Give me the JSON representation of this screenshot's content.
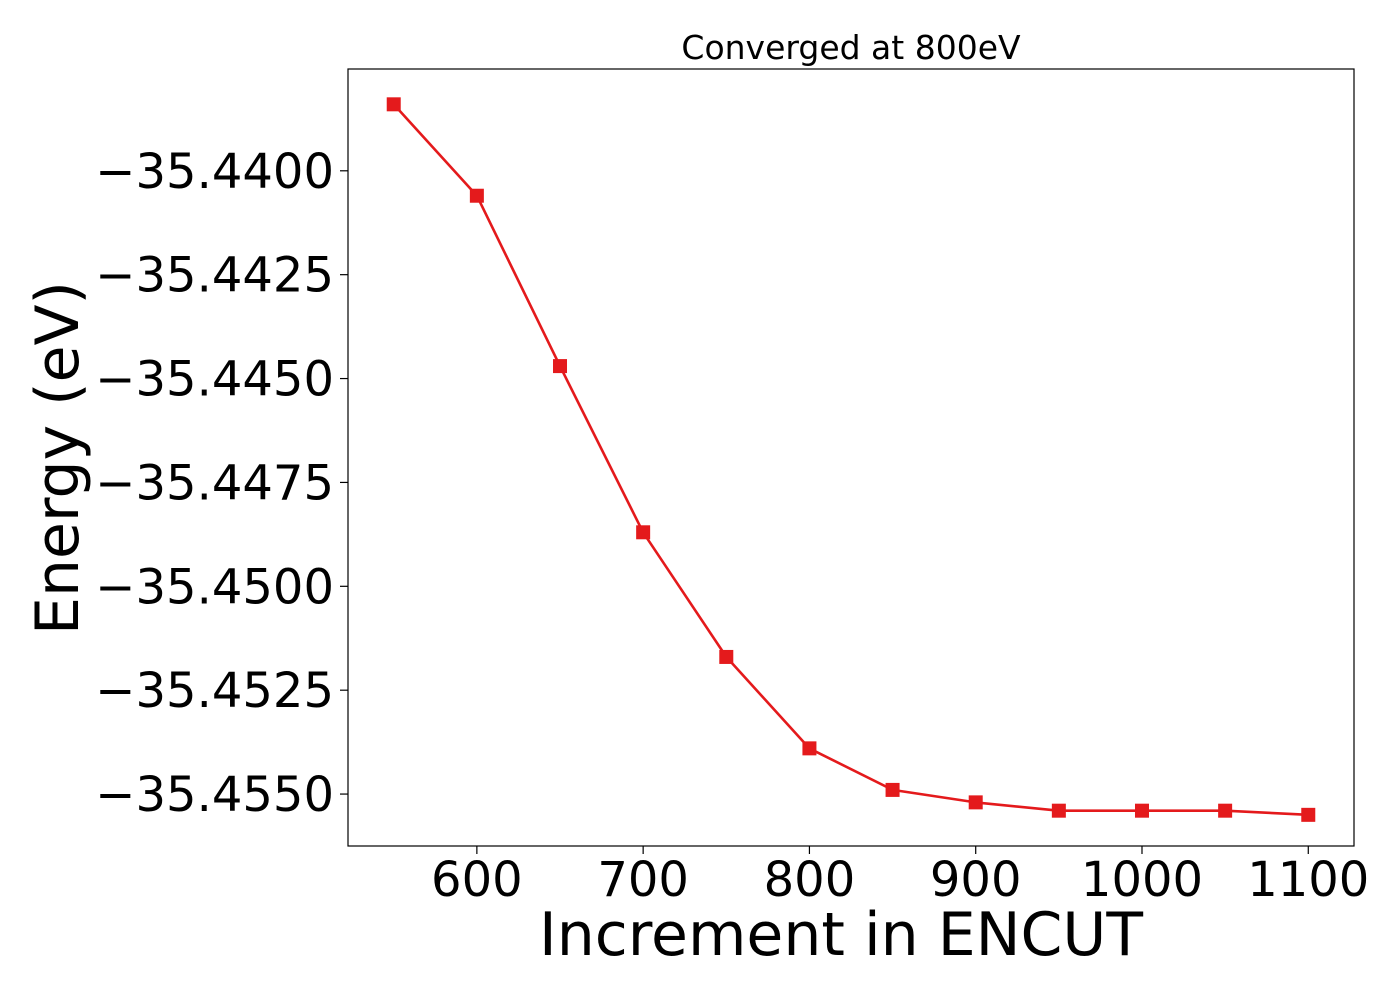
{
  "chart_data": {
    "type": "line",
    "title": "Converged at 800eV",
    "xlabel": "Increment in ENCUT",
    "ylabel": "Energy (eV)",
    "xlim": [
      522.5,
      1127.5
    ],
    "ylim": [
      -35.45625,
      -35.43755
    ],
    "x_ticks": [
      600,
      700,
      800,
      900,
      1000,
      1100
    ],
    "x_tick_labels": [
      "600",
      "700",
      "800",
      "900",
      "1000",
      "1100"
    ],
    "y_ticks": [
      -35.44,
      -35.4425,
      -35.445,
      -35.4475,
      -35.45,
      -35.4525,
      -35.455
    ],
    "y_tick_labels": [
      "−35.4400",
      "−35.4425",
      "−35.4450",
      "−35.4475",
      "−35.4500",
      "−35.4525",
      "−35.4550"
    ],
    "grid": false,
    "series": [
      {
        "color": "#e41a1c",
        "marker": "square",
        "x": [
          550,
          600,
          650,
          700,
          750,
          800,
          850,
          900,
          950,
          1000,
          1050,
          1100
        ],
        "y": [
          -35.4384,
          -35.4406,
          -35.4447,
          -35.4487,
          -35.4517,
          -35.4539,
          -35.4549,
          -35.4552,
          -35.4554,
          -35.4554,
          -35.4554,
          -35.4555
        ]
      }
    ]
  }
}
